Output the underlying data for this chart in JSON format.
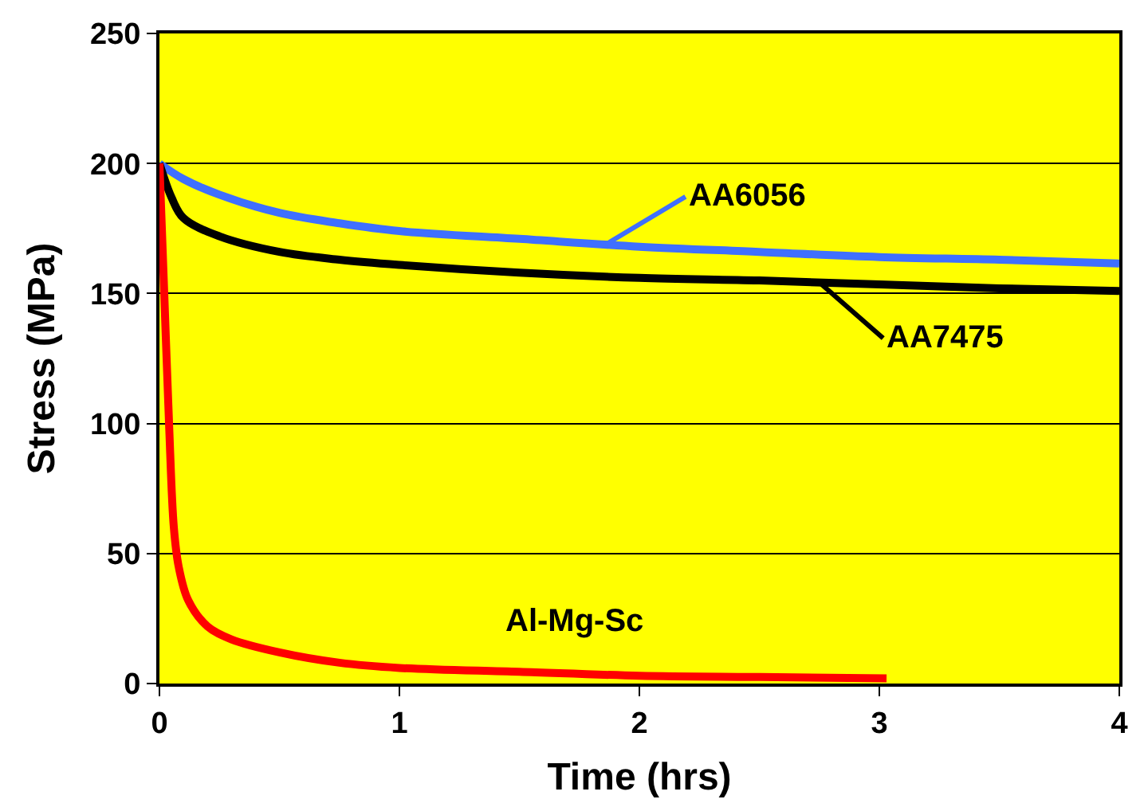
{
  "chart_data": {
    "type": "line",
    "xlabel": "Time (hrs)",
    "ylabel": "Stress (MPa)",
    "xlim": [
      0,
      4
    ],
    "xticks": [
      0,
      1,
      2,
      3,
      4
    ],
    "ylim": [
      0,
      250
    ],
    "yticks": [
      0,
      50,
      100,
      150,
      200,
      250
    ],
    "grid": "y",
    "legend": false,
    "marker": "none",
    "line_style": "solid",
    "series": [
      {
        "name": "AA6056",
        "color": "#3f6fff",
        "x": [
          0,
          0.1,
          0.25,
          0.5,
          0.75,
          1,
          1.5,
          2,
          2.5,
          3,
          3.5,
          4
        ],
        "values": [
          200,
          194,
          188,
          181,
          177,
          174,
          171,
          168,
          166,
          164,
          163,
          161.5
        ]
      },
      {
        "name": "AA7475",
        "color": "#000000",
        "x": [
          0,
          0.05,
          0.1,
          0.25,
          0.5,
          0.75,
          1,
          1.5,
          2,
          2.5,
          3,
          3.5,
          4
        ],
        "values": [
          200,
          187,
          179,
          172,
          166,
          163,
          161,
          158,
          156,
          155,
          153.5,
          152,
          151
        ]
      },
      {
        "name": "Al-Mg-Sc",
        "color": "#ff0000",
        "x": [
          0,
          0.02,
          0.04,
          0.06,
          0.08,
          0.12,
          0.2,
          0.3,
          0.5,
          0.75,
          1,
          1.5,
          2,
          2.5,
          3.03
        ],
        "values": [
          200,
          150,
          100,
          60,
          45,
          32,
          22,
          17,
          12,
          8,
          6,
          4.5,
          3,
          2.5,
          2
        ]
      }
    ]
  }
}
